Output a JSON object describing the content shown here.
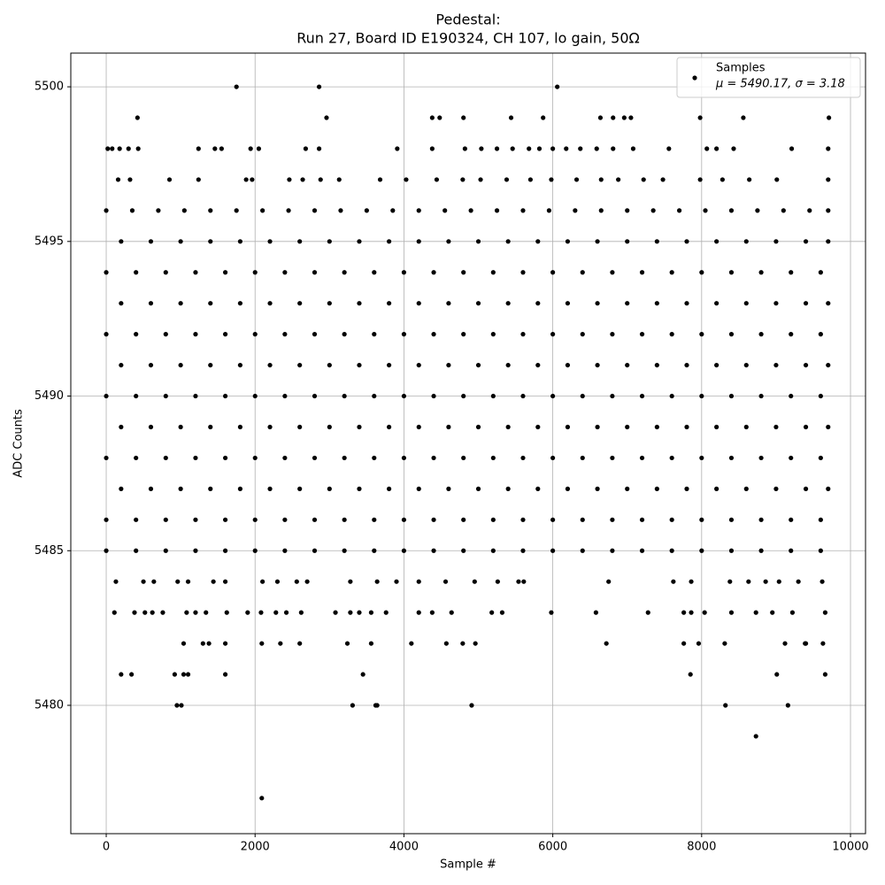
{
  "chart_data": {
    "type": "scatter",
    "title": [
      "Pedestal:",
      "Run 27, Board ID E190324, CH 107, lo gain, 50Ω"
    ],
    "x_label": "Sample #",
    "y_label": "ADC Counts",
    "xlim": [
      -476,
      10202
    ],
    "ylim": [
      5475.85,
      5501.09
    ],
    "xticks": [
      0,
      2000,
      4000,
      6000,
      8000,
      10000
    ],
    "yticks": [
      5480,
      5485,
      5490,
      5495,
      5500
    ],
    "grid": true,
    "legend": "upper right",
    "series": [
      {
        "name": "Samples",
        "legend_label": "μ = 5490.17, σ = 3.18",
        "color": "#000000",
        "x": [
          1750,
          2860,
          6060,
          420,
          2960,
          4380,
          4480,
          4800,
          5440,
          5870,
          6640,
          6810,
          6960,
          7050,
          7980,
          8560,
          9710,
          20,
          80,
          180,
          300,
          430,
          1240,
          1460,
          1550,
          1940,
          2050,
          2680,
          2860,
          3910,
          4380,
          4820,
          5040,
          5250,
          5460,
          5680,
          5820,
          6000,
          6180,
          6370,
          6590,
          6810,
          7080,
          7560,
          8070,
          8200,
          8430,
          9210,
          9700,
          160,
          320,
          850,
          1240,
          1880,
          1960,
          2460,
          2640,
          2880,
          3130,
          3680,
          4030,
          4440,
          4790,
          5030,
          5380,
          5700,
          5980,
          6320,
          6650,
          6880,
          7220,
          7480,
          7980,
          8280,
          8640,
          9010,
          9700,
          0,
          350,
          700,
          1050,
          1400,
          1750,
          2100,
          2450,
          2800,
          3150,
          3500,
          3850,
          4200,
          4550,
          4900,
          5250,
          5600,
          5950,
          6300,
          6650,
          7000,
          7350,
          7700,
          8050,
          8400,
          8750,
          9100,
          9450,
          9700,
          200,
          600,
          1000,
          1400,
          1800,
          2200,
          2600,
          3000,
          3400,
          3800,
          4200,
          4600,
          5000,
          5400,
          5800,
          6200,
          6600,
          7000,
          7400,
          7800,
          8200,
          8600,
          9000,
          9400,
          9700,
          0,
          400,
          800,
          1200,
          1600,
          2000,
          2400,
          2800,
          3200,
          3600,
          4000,
          4400,
          4800,
          5200,
          5600,
          6000,
          6400,
          6800,
          7200,
          7600,
          8000,
          8400,
          8800,
          9200,
          9600,
          200,
          600,
          1000,
          1400,
          1800,
          2200,
          2600,
          3000,
          3400,
          3800,
          4200,
          4600,
          5000,
          5400,
          5800,
          6200,
          6600,
          7000,
          7400,
          7800,
          8200,
          8600,
          9000,
          9400,
          9700,
          0,
          400,
          800,
          1200,
          1600,
          2000,
          2400,
          2800,
          3200,
          3600,
          4000,
          4400,
          4800,
          5200,
          5600,
          6000,
          6400,
          6800,
          7200,
          7600,
          8000,
          8400,
          8800,
          9200,
          9600,
          200,
          600,
          1000,
          1400,
          1800,
          2200,
          2600,
          3000,
          3400,
          3800,
          4200,
          4600,
          5000,
          5400,
          5800,
          6200,
          6600,
          7000,
          7400,
          7800,
          8200,
          8600,
          9000,
          9400,
          9700,
          0,
          400,
          800,
          1200,
          1600,
          2000,
          2400,
          2800,
          3200,
          3600,
          4000,
          4400,
          4800,
          5200,
          5600,
          6000,
          6400,
          6800,
          7200,
          7600,
          8000,
          8400,
          8800,
          9200,
          9600,
          200,
          600,
          1000,
          1400,
          1800,
          2200,
          2600,
          3000,
          3400,
          3800,
          4200,
          4600,
          5000,
          5400,
          5800,
          6200,
          6600,
          7000,
          7400,
          7800,
          8200,
          8600,
          9000,
          9400,
          9700,
          0,
          400,
          800,
          1200,
          1600,
          2000,
          2400,
          2800,
          3200,
          3600,
          4000,
          4400,
          4800,
          5200,
          5600,
          6000,
          6400,
          6800,
          7200,
          7600,
          8000,
          8400,
          8800,
          9200,
          9600,
          200,
          600,
          1000,
          1400,
          1800,
          2200,
          2600,
          3000,
          3400,
          3800,
          4200,
          4600,
          5000,
          5400,
          5800,
          6200,
          6600,
          7000,
          7400,
          7800,
          8200,
          8600,
          9000,
          9400,
          9700,
          0,
          400,
          800,
          1200,
          1600,
          2000,
          2400,
          2800,
          3200,
          3600,
          4000,
          4400,
          4800,
          5200,
          5600,
          6000,
          6400,
          6800,
          7200,
          7600,
          8000,
          8400,
          8800,
          9200,
          9600,
          0,
          400,
          800,
          1200,
          1600,
          2000,
          2400,
          2800,
          3200,
          3600,
          4000,
          4400,
          4800,
          5200,
          5600,
          6000,
          6400,
          6800,
          7200,
          7600,
          8000,
          8400,
          8800,
          9200,
          9600,
          130,
          500,
          640,
          960,
          1100,
          1440,
          1600,
          2100,
          2300,
          2560,
          2700,
          3280,
          3640,
          3900,
          4200,
          4560,
          4950,
          5260,
          5540,
          5610,
          6750,
          7620,
          7860,
          8380,
          8630,
          8860,
          9040,
          9300,
          9620,
          110,
          380,
          520,
          620,
          760,
          1080,
          1200,
          1340,
          1620,
          1900,
          2080,
          2280,
          2420,
          2620,
          3080,
          3280,
          3400,
          3560,
          3760,
          4200,
          4380,
          4640,
          5180,
          5320,
          5980,
          6580,
          7280,
          7760,
          7860,
          8040,
          8400,
          8730,
          8950,
          9220,
          9660,
          1040,
          1300,
          1380,
          1600,
          2090,
          2340,
          2600,
          3240,
          3560,
          4100,
          4570,
          4790,
          4960,
          6720,
          7760,
          7960,
          8310,
          9120,
          9390,
          9630,
          200,
          340,
          920,
          1040,
          1100,
          1600,
          3450,
          7850,
          9010,
          9660,
          950,
          1010,
          3310,
          3620,
          3640,
          4910,
          8320,
          9160,
          9400,
          8730,
          2090
        ],
        "values": [
          5500,
          5500,
          5500,
          5499,
          5499,
          5499,
          5499,
          5499,
          5499,
          5499,
          5499,
          5499,
          5499,
          5499,
          5499,
          5499,
          5499,
          5498,
          5498,
          5498,
          5498,
          5498,
          5498,
          5498,
          5498,
          5498,
          5498,
          5498,
          5498,
          5498,
          5498,
          5498,
          5498,
          5498,
          5498,
          5498,
          5498,
          5498,
          5498,
          5498,
          5498,
          5498,
          5498,
          5498,
          5498,
          5498,
          5498,
          5498,
          5498,
          5497,
          5497,
          5497,
          5497,
          5497,
          5497,
          5497,
          5497,
          5497,
          5497,
          5497,
          5497,
          5497,
          5497,
          5497,
          5497,
          5497,
          5497,
          5497,
          5497,
          5497,
          5497,
          5497,
          5497,
          5497,
          5497,
          5497,
          5497,
          5496,
          5496,
          5496,
          5496,
          5496,
          5496,
          5496,
          5496,
          5496,
          5496,
          5496,
          5496,
          5496,
          5496,
          5496,
          5496,
          5496,
          5496,
          5496,
          5496,
          5496,
          5496,
          5496,
          5496,
          5496,
          5496,
          5496,
          5496,
          5496,
          5495,
          5495,
          5495,
          5495,
          5495,
          5495,
          5495,
          5495,
          5495,
          5495,
          5495,
          5495,
          5495,
          5495,
          5495,
          5495,
          5495,
          5495,
          5495,
          5495,
          5495,
          5495,
          5495,
          5495,
          5495,
          5494,
          5494,
          5494,
          5494,
          5494,
          5494,
          5494,
          5494,
          5494,
          5494,
          5494,
          5494,
          5494,
          5494,
          5494,
          5494,
          5494,
          5494,
          5494,
          5494,
          5494,
          5494,
          5494,
          5494,
          5494,
          5493,
          5493,
          5493,
          5493,
          5493,
          5493,
          5493,
          5493,
          5493,
          5493,
          5493,
          5493,
          5493,
          5493,
          5493,
          5493,
          5493,
          5493,
          5493,
          5493,
          5493,
          5493,
          5493,
          5493,
          5493,
          5492,
          5492,
          5492,
          5492,
          5492,
          5492,
          5492,
          5492,
          5492,
          5492,
          5492,
          5492,
          5492,
          5492,
          5492,
          5492,
          5492,
          5492,
          5492,
          5492,
          5492,
          5492,
          5492,
          5492,
          5492,
          5491,
          5491,
          5491,
          5491,
          5491,
          5491,
          5491,
          5491,
          5491,
          5491,
          5491,
          5491,
          5491,
          5491,
          5491,
          5491,
          5491,
          5491,
          5491,
          5491,
          5491,
          5491,
          5491,
          5491,
          5491,
          5490,
          5490,
          5490,
          5490,
          5490,
          5490,
          5490,
          5490,
          5490,
          5490,
          5490,
          5490,
          5490,
          5490,
          5490,
          5490,
          5490,
          5490,
          5490,
          5490,
          5490,
          5490,
          5490,
          5490,
          5490,
          5489,
          5489,
          5489,
          5489,
          5489,
          5489,
          5489,
          5489,
          5489,
          5489,
          5489,
          5489,
          5489,
          5489,
          5489,
          5489,
          5489,
          5489,
          5489,
          5489,
          5489,
          5489,
          5489,
          5489,
          5489,
          5488,
          5488,
          5488,
          5488,
          5488,
          5488,
          5488,
          5488,
          5488,
          5488,
          5488,
          5488,
          5488,
          5488,
          5488,
          5488,
          5488,
          5488,
          5488,
          5488,
          5488,
          5488,
          5488,
          5488,
          5488,
          5487,
          5487,
          5487,
          5487,
          5487,
          5487,
          5487,
          5487,
          5487,
          5487,
          5487,
          5487,
          5487,
          5487,
          5487,
          5487,
          5487,
          5487,
          5487,
          5487,
          5487,
          5487,
          5487,
          5487,
          5487,
          5486,
          5486,
          5486,
          5486,
          5486,
          5486,
          5486,
          5486,
          5486,
          5486,
          5486,
          5486,
          5486,
          5486,
          5486,
          5486,
          5486,
          5486,
          5486,
          5486,
          5486,
          5486,
          5486,
          5486,
          5486,
          5485,
          5485,
          5485,
          5485,
          5485,
          5485,
          5485,
          5485,
          5485,
          5485,
          5485,
          5485,
          5485,
          5485,
          5485,
          5485,
          5485,
          5485,
          5485,
          5485,
          5485,
          5485,
          5485,
          5485,
          5485,
          5484,
          5484,
          5484,
          5484,
          5484,
          5484,
          5484,
          5484,
          5484,
          5484,
          5484,
          5484,
          5484,
          5484,
          5484,
          5484,
          5484,
          5484,
          5484,
          5484,
          5484,
          5484,
          5484,
          5484,
          5484,
          5484,
          5484,
          5484,
          5484,
          5483,
          5483,
          5483,
          5483,
          5483,
          5483,
          5483,
          5483,
          5483,
          5483,
          5483,
          5483,
          5483,
          5483,
          5483,
          5483,
          5483,
          5483,
          5483,
          5483,
          5483,
          5483,
          5483,
          5483,
          5483,
          5483,
          5483,
          5483,
          5483,
          5483,
          5483,
          5483,
          5483,
          5483,
          5483,
          5482,
          5482,
          5482,
          5482,
          5482,
          5482,
          5482,
          5482,
          5482,
          5482,
          5482,
          5482,
          5482,
          5482,
          5482,
          5482,
          5482,
          5482,
          5482,
          5482,
          5481,
          5481,
          5481,
          5481,
          5481,
          5481,
          5481,
          5481,
          5481,
          5481,
          5480,
          5480,
          5480,
          5480,
          5480,
          5480,
          5480,
          5480,
          5482,
          5479,
          5477
        ]
      }
    ]
  }
}
